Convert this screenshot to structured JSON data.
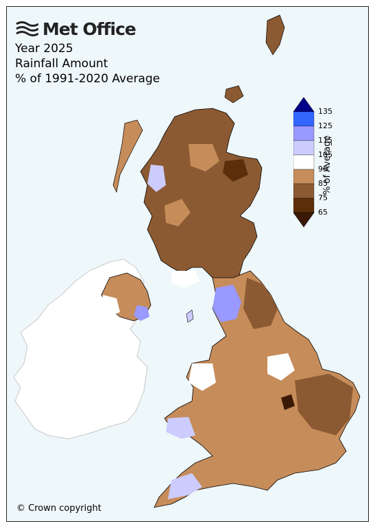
{
  "header": {
    "logo_text": "Met Office",
    "title_line1": "Year 2025",
    "title_line2": "Rainfall Amount",
    "title_line3": "% of 1991-2020 Average"
  },
  "legend": {
    "title": "% of Average",
    "ticks": [
      "135",
      "125",
      "115",
      "105",
      "95",
      "85",
      "75",
      "65"
    ],
    "colors": [
      "#00008b",
      "#3366ff",
      "#9999ff",
      "#ccccff",
      "#ffffff",
      "#c68c5a",
      "#8c5a32",
      "#5c2e0a",
      "#3b1a05"
    ]
  },
  "footer": {
    "copyright": "© Crown copyright"
  },
  "map": {
    "background": "#eef7fa",
    "land_outline": "#000000",
    "ireland_fill": "#ffffff"
  }
}
